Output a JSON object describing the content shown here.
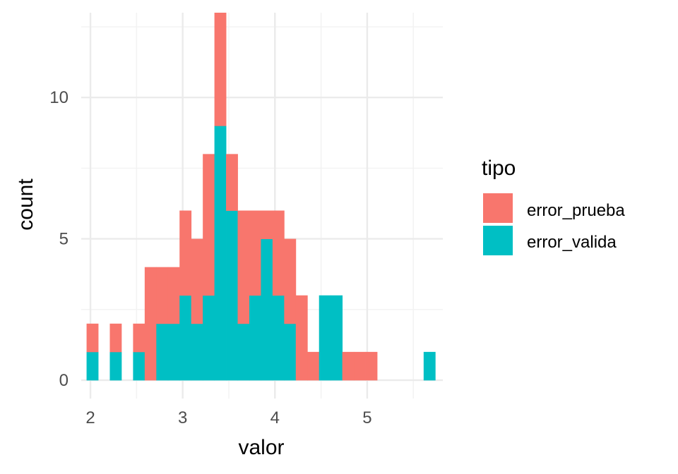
{
  "chart_data": {
    "type": "bar",
    "stacked": true,
    "xlabel": "valor",
    "ylabel": "count",
    "xlim": [
      1.9,
      5.82
    ],
    "ylim": [
      -0.65,
      13.0
    ],
    "x_ticks": [
      2,
      3,
      4,
      5
    ],
    "y_ticks": [
      0,
      5,
      10
    ],
    "bin_width": 0.126,
    "bin_starts": [
      1.958,
      2.084,
      2.21,
      2.336,
      2.462,
      2.588,
      2.714,
      2.84,
      2.966,
      3.092,
      3.218,
      3.344,
      3.47,
      3.596,
      3.722,
      3.848,
      3.974,
      4.1,
      4.226,
      4.352,
      4.478,
      4.604,
      4.73,
      4.856,
      4.982,
      5.108,
      5.234,
      5.36,
      5.486,
      5.612
    ],
    "series": [
      {
        "name": "error_valida",
        "color": "#00BFC4",
        "values": [
          1,
          0,
          1,
          0,
          1,
          0,
          2,
          2,
          3,
          2,
          3,
          9,
          6,
          2,
          3,
          5,
          3,
          2,
          0,
          0,
          3,
          3,
          0,
          0,
          0,
          0,
          0,
          0,
          0,
          1
        ]
      },
      {
        "name": "error_prueba",
        "color": "#F8766D",
        "values": [
          1,
          0,
          1,
          0,
          1,
          4,
          2,
          2,
          3,
          3,
          5,
          4,
          2,
          4,
          3,
          1,
          3,
          3,
          3,
          1,
          0,
          0,
          1,
          1,
          1,
          0,
          0,
          0,
          0,
          0
        ]
      }
    ],
    "grid": true,
    "legend": {
      "title": "tipo",
      "position": "right",
      "items": [
        {
          "label": "error_prueba",
          "color": "#F8766D"
        },
        {
          "label": "error_valida",
          "color": "#00BFC4"
        }
      ]
    }
  }
}
